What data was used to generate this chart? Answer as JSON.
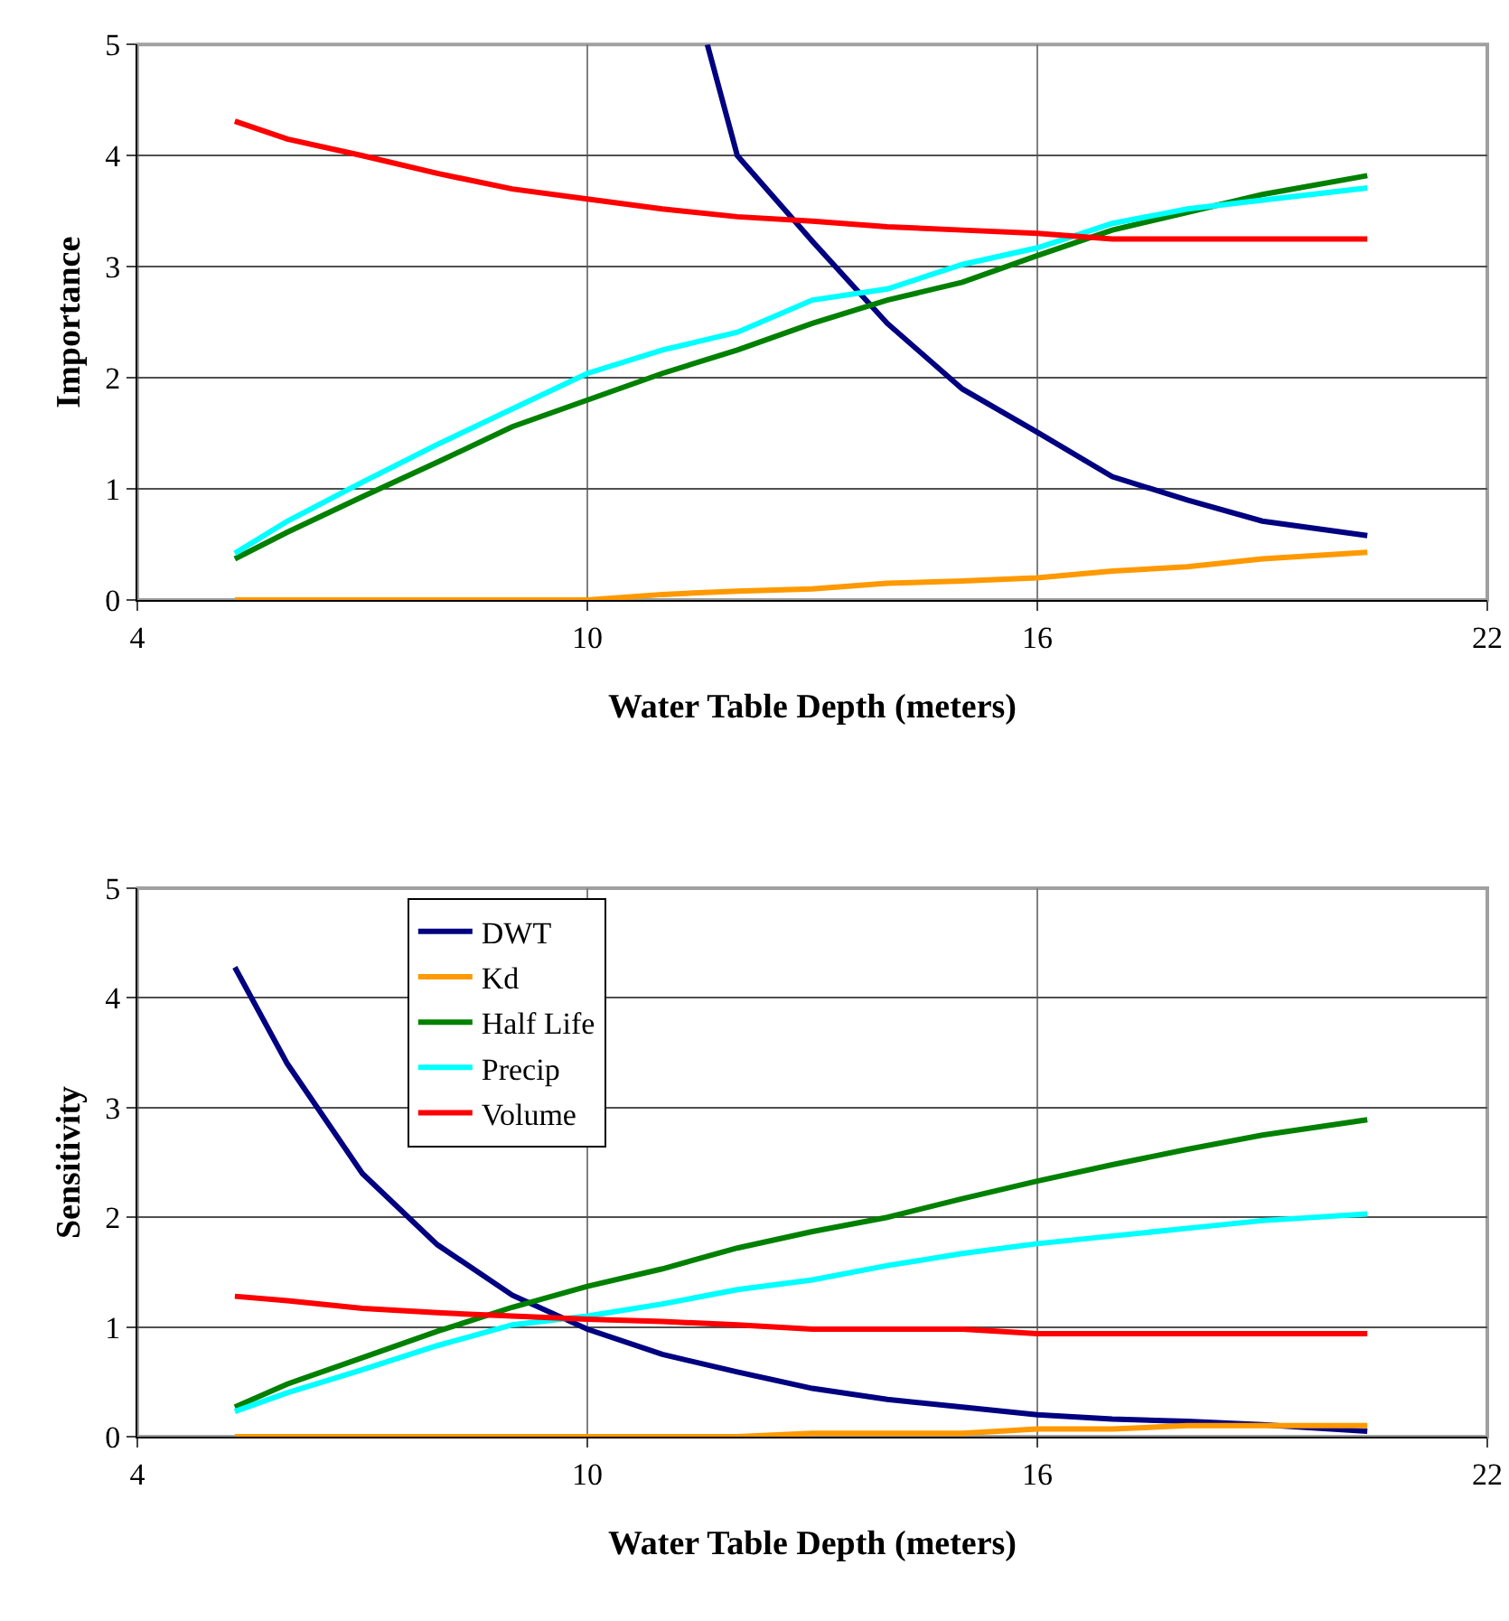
{
  "chart_data": [
    {
      "type": "line",
      "xlabel": "Water Table Depth (meters)",
      "ylabel": "Importance",
      "x": [
        5.3,
        6,
        7,
        8,
        9,
        10,
        11,
        12,
        13,
        14,
        15,
        16,
        17,
        18,
        19,
        20.4
      ],
      "xlim": [
        4,
        22
      ],
      "xticks": [
        4,
        10,
        16,
        22
      ],
      "ylim": [
        0,
        5
      ],
      "yticks": [
        0,
        1,
        2,
        3,
        4,
        5
      ],
      "grid": true,
      "legend": false,
      "series": [
        {
          "color": "#000080",
          "x": [
            11.6,
            12,
            13,
            14,
            15,
            16,
            17,
            18,
            19,
            20.4
          ],
          "values": [
            5.0,
            4.0,
            3.23,
            2.49,
            1.9,
            1.51,
            1.11,
            0.9,
            0.71,
            0.58
          ]
        },
        {
          "color": "#ff9900",
          "values": [
            0,
            0,
            0,
            0,
            0,
            0,
            0.05,
            0.08,
            0.1,
            0.15,
            0.17,
            0.2,
            0.26,
            0.3,
            0.37,
            0.43
          ]
        },
        {
          "color": "#008000",
          "values": [
            0.37,
            0.61,
            0.93,
            1.24,
            1.56,
            1.8,
            2.04,
            2.25,
            2.49,
            2.7,
            2.86,
            3.1,
            3.33,
            3.49,
            3.65,
            3.82
          ]
        },
        {
          "color": "#00ffff",
          "values": [
            0.42,
            0.71,
            1.06,
            1.4,
            1.72,
            2.04,
            2.25,
            2.41,
            2.7,
            2.8,
            3.02,
            3.17,
            3.39,
            3.52,
            3.6,
            3.71
          ]
        },
        {
          "color": "#ff0000",
          "values": [
            4.31,
            4.15,
            4.0,
            3.84,
            3.7,
            3.61,
            3.52,
            3.45,
            3.41,
            3.36,
            3.33,
            3.3,
            3.25,
            3.25,
            3.25,
            3.25
          ]
        }
      ]
    },
    {
      "type": "line",
      "xlabel": "Water Table Depth (meters)",
      "ylabel": "Sensitivity",
      "x": [
        5.3,
        6,
        7,
        8,
        9,
        10,
        11,
        12,
        13,
        14,
        15,
        16,
        17,
        18,
        19,
        20.4
      ],
      "xlim": [
        4,
        22
      ],
      "xticks": [
        4,
        10,
        16,
        22
      ],
      "ylim": [
        0,
        5
      ],
      "yticks": [
        0,
        1,
        2,
        3,
        4,
        5
      ],
      "grid": true,
      "legend": "top left",
      "series": [
        {
          "name": "DWT",
          "color": "#000080",
          "values": [
            4.28,
            3.4,
            2.4,
            1.75,
            1.29,
            0.98,
            0.75,
            0.59,
            0.44,
            0.34,
            0.27,
            0.2,
            0.16,
            0.14,
            0.11,
            0.05
          ]
        },
        {
          "name": "Kd",
          "color": "#ff9900",
          "values": [
            0,
            0,
            0,
            0,
            0,
            0,
            0,
            0,
            0.03,
            0.03,
            0.03,
            0.07,
            0.07,
            0.1,
            0.1,
            0.1
          ]
        },
        {
          "name": "Half Life",
          "color": "#008000",
          "values": [
            0.27,
            0.48,
            0.72,
            0.96,
            1.18,
            1.37,
            1.53,
            1.72,
            1.87,
            2.0,
            2.17,
            2.33,
            2.48,
            2.62,
            2.75,
            2.89
          ]
        },
        {
          "name": "Precip",
          "color": "#00ffff",
          "values": [
            0.23,
            0.4,
            0.61,
            0.83,
            1.02,
            1.1,
            1.21,
            1.34,
            1.43,
            1.56,
            1.67,
            1.76,
            1.83,
            1.9,
            1.97,
            2.03
          ]
        },
        {
          "name": "Volume",
          "color": "#ff0000",
          "values": [
            1.28,
            1.24,
            1.17,
            1.13,
            1.1,
            1.07,
            1.05,
            1.02,
            0.98,
            0.98,
            0.98,
            0.94,
            0.94,
            0.94,
            0.94,
            0.94
          ]
        }
      ]
    }
  ]
}
